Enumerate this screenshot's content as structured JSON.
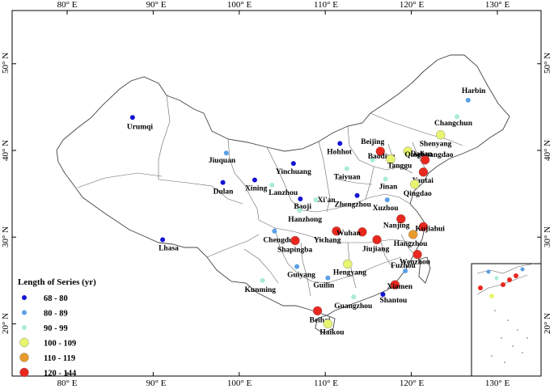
{
  "map": {
    "lon_ticks": [
      "80° E",
      "90° E",
      "100° E",
      "110° E",
      "120° E",
      "130° E"
    ],
    "lat_ticks": [
      "50° N",
      "40° N",
      "30° N",
      "20° N"
    ],
    "legend": {
      "title": "Length of Series (yr)",
      "classes": [
        {
          "label": "68 - 80",
          "color": "#1414d6"
        },
        {
          "label": "80 - 89",
          "color": "#5aa0e6"
        },
        {
          "label": "90 - 99",
          "color": "#a8ecd8"
        },
        {
          "label": "100 - 109",
          "color": "#e8f470"
        },
        {
          "label": "110 - 119",
          "color": "#e89a2a"
        },
        {
          "label": "120 - 144",
          "color": "#e8281e"
        }
      ]
    },
    "cities": [
      {
        "name": "Urumqi",
        "lon": 87.6,
        "lat": 43.8,
        "cls": 0
      },
      {
        "name": "Lhasa",
        "lon": 91.1,
        "lat": 29.7,
        "cls": 0
      },
      {
        "name": "Harbin",
        "lon": 126.6,
        "lat": 45.8,
        "cls": 1
      },
      {
        "name": "Changchun",
        "lon": 125.3,
        "lat": 43.9,
        "cls": 2
      },
      {
        "name": "Shenyang",
        "lon": 123.4,
        "lat": 41.8,
        "cls": 3
      },
      {
        "name": "Beijing",
        "lon": 116.4,
        "lat": 39.9,
        "cls": 5
      },
      {
        "name": "Baoding",
        "lon": 115.5,
        "lat": 38.9,
        "cls": 2
      },
      {
        "name": "Tanggu",
        "lon": 117.6,
        "lat": 39.0,
        "cls": 3
      },
      {
        "name": "Qinghuangdao",
        "lon": 119.6,
        "lat": 39.9,
        "cls": 3
      },
      {
        "name": "Dalian",
        "lon": 121.6,
        "lat": 38.9,
        "cls": 5
      },
      {
        "name": "Hohhot",
        "lon": 111.7,
        "lat": 40.8,
        "cls": 0
      },
      {
        "name": "Jiuquan",
        "lon": 98.5,
        "lat": 39.7,
        "cls": 1
      },
      {
        "name": "Yinchuang",
        "lon": 106.3,
        "lat": 38.5,
        "cls": 0
      },
      {
        "name": "Taiyuan",
        "lon": 112.5,
        "lat": 37.9,
        "cls": 2
      },
      {
        "name": "Jinan",
        "lon": 117.0,
        "lat": 36.7,
        "cls": 2
      },
      {
        "name": "Yantai",
        "lon": 121.4,
        "lat": 37.5,
        "cls": 5
      },
      {
        "name": "Qingdao",
        "lon": 120.4,
        "lat": 36.1,
        "cls": 3
      },
      {
        "name": "Dulan",
        "lon": 98.1,
        "lat": 36.3,
        "cls": 0
      },
      {
        "name": "Xining",
        "lon": 101.8,
        "lat": 36.6,
        "cls": 0
      },
      {
        "name": "Lanzhou",
        "lon": 103.8,
        "lat": 36.0,
        "cls": 2
      },
      {
        "name": "Zhengzhou",
        "lon": 113.7,
        "lat": 34.8,
        "cls": 0
      },
      {
        "name": "Xuzhou",
        "lon": 117.2,
        "lat": 34.3,
        "cls": 1
      },
      {
        "name": "Baoji",
        "lon": 107.1,
        "lat": 34.4,
        "cls": 0
      },
      {
        "name": "Xi'an",
        "lon": 108.9,
        "lat": 34.3,
        "cls": 2
      },
      {
        "name": "Hanzhong",
        "lon": 107.0,
        "lat": 33.1,
        "cls": 2
      },
      {
        "name": "Nanjing",
        "lon": 118.8,
        "lat": 32.1,
        "cls": 5
      },
      {
        "name": "Chengdu",
        "lon": 104.1,
        "lat": 30.7,
        "cls": 1
      },
      {
        "name": "Yichang",
        "lon": 111.3,
        "lat": 30.7,
        "cls": 5
      },
      {
        "name": "Wuhan",
        "lon": 114.3,
        "lat": 30.6,
        "cls": 5
      },
      {
        "name": "Kujiahui",
        "lon": 121.4,
        "lat": 31.2,
        "cls": 5
      },
      {
        "name": "Hangzhou",
        "lon": 120.2,
        "lat": 30.3,
        "cls": 4
      },
      {
        "name": "Shapingba",
        "lon": 106.5,
        "lat": 29.6,
        "cls": 5
      },
      {
        "name": "Jiujiang",
        "lon": 116.0,
        "lat": 29.7,
        "cls": 5
      },
      {
        "name": "Wenzhou",
        "lon": 120.7,
        "lat": 28.0,
        "cls": 5
      },
      {
        "name": "Hengyang",
        "lon": 112.6,
        "lat": 26.9,
        "cls": 3
      },
      {
        "name": "Guiyang",
        "lon": 106.7,
        "lat": 26.6,
        "cls": 1
      },
      {
        "name": "Kunming",
        "lon": 102.7,
        "lat": 25.0,
        "cls": 2
      },
      {
        "name": "Guilin",
        "lon": 110.3,
        "lat": 25.3,
        "cls": 1
      },
      {
        "name": "Fuzhou",
        "lon": 119.3,
        "lat": 26.1,
        "cls": 1
      },
      {
        "name": "Xiamen",
        "lon": 118.1,
        "lat": 24.5,
        "cls": 5
      },
      {
        "name": "Guangzhou",
        "lon": 113.3,
        "lat": 23.1,
        "cls": 2
      },
      {
        "name": "Shantou",
        "lon": 116.7,
        "lat": 23.4,
        "cls": 0
      },
      {
        "name": "Beihai",
        "lon": 109.1,
        "lat": 21.5,
        "cls": 5
      },
      {
        "name": "Haikou",
        "lon": 110.3,
        "lat": 20.0,
        "cls": 3
      }
    ]
  }
}
